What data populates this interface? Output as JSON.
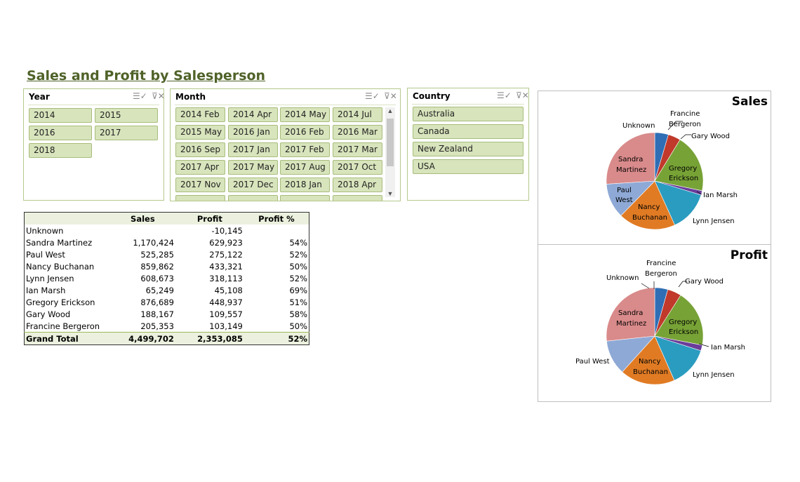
{
  "title": "Sales and Profit by Salesperson",
  "slicers": {
    "year": {
      "title": "Year",
      "items": [
        "2014",
        "2015",
        "2016",
        "2017",
        "2018"
      ]
    },
    "month": {
      "title": "Month",
      "items": [
        "2014 Feb",
        "2014 Apr",
        "2014 May",
        "2014 Jul",
        "2015 May",
        "2016 Jan",
        "2016 Feb",
        "2016 Mar",
        "2016 Sep",
        "2017 Jan",
        "2017 Feb",
        "2017 Mar",
        "2017 Apr",
        "2017 May",
        "2017 Aug",
        "2017 Oct",
        "2017 Nov",
        "2017 Dec",
        "2018 Jan",
        "2018 Apr"
      ]
    },
    "country": {
      "title": "Country",
      "items": [
        "Australia",
        "Canada",
        "New Zealand",
        "USA"
      ]
    }
  },
  "pivot": {
    "headers": [
      "",
      "Sales",
      "Profit",
      "Profit %"
    ],
    "rows": [
      [
        "Unknown",
        "",
        "-10,145",
        ""
      ],
      [
        "Sandra Martinez",
        "1,170,424",
        "629,923",
        "54%"
      ],
      [
        "Paul West",
        "525,285",
        "275,122",
        "52%"
      ],
      [
        "Nancy Buchanan",
        "859,862",
        "433,321",
        "50%"
      ],
      [
        "Lynn Jensen",
        "608,673",
        "318,113",
        "52%"
      ],
      [
        "Ian Marsh",
        "65,249",
        "45,108",
        "69%"
      ],
      [
        "Gregory Erickson",
        "876,689",
        "448,937",
        "51%"
      ],
      [
        "Gary Wood",
        "188,167",
        "109,557",
        "58%"
      ],
      [
        "Francine Bergeron",
        "205,353",
        "103,149",
        "50%"
      ]
    ],
    "total": [
      "Grand Total",
      "4,499,702",
      "2,353,085",
      "52%"
    ]
  },
  "chart_data": [
    {
      "type": "pie",
      "title": "Sales",
      "categories": [
        "Unknown",
        "Francine Bergeron",
        "Gary Wood",
        "Gregory Erickson",
        "Ian Marsh",
        "Lynn Jensen",
        "Nancy Buchanan",
        "Paul West",
        "Sandra Martinez"
      ],
      "values": [
        0,
        205353,
        188167,
        876689,
        65249,
        608673,
        859862,
        525285,
        1170424
      ],
      "colors": [
        "#1f3f6e",
        "#2f6eb5",
        "#c0392b",
        "#77a236",
        "#6a3d9a",
        "#2a9cc0",
        "#e07b24",
        "#8ea9d6",
        "#d98a8a"
      ]
    },
    {
      "type": "pie",
      "title": "Profit",
      "categories": [
        "Unknown",
        "Francine Bergeron",
        "Gary Wood",
        "Gregory Erickson",
        "Ian Marsh",
        "Lynn Jensen",
        "Nancy Buchanan",
        "Paul West",
        "Sandra Martinez"
      ],
      "values": [
        0,
        103149,
        109557,
        448937,
        45108,
        318113,
        433321,
        275122,
        629923
      ],
      "colors": [
        "#1f3f6e",
        "#2f6eb5",
        "#c0392b",
        "#77a236",
        "#6a3d9a",
        "#2a9cc0",
        "#e07b24",
        "#8ea9d6",
        "#d98a8a"
      ]
    }
  ],
  "chart_labels": {
    "unknown": "Unknown",
    "francine_1": "Francine",
    "francine_2": "Bergeron",
    "gary": "Gary Wood",
    "gregory_1": "Gregory",
    "gregory_2": "Erickson",
    "ian": "Ian Marsh",
    "lynn": "Lynn Jensen",
    "nancy_1": "Nancy",
    "nancy_2": "Buchanan",
    "paul_1": "Paul",
    "paul_2": "West",
    "paul_full": "Paul West",
    "sandra_1": "Sandra",
    "sandra_2": "Martinez"
  },
  "icons": {
    "multi_select": "multi-select-icon",
    "clear_filter": "clear-filter-icon"
  }
}
